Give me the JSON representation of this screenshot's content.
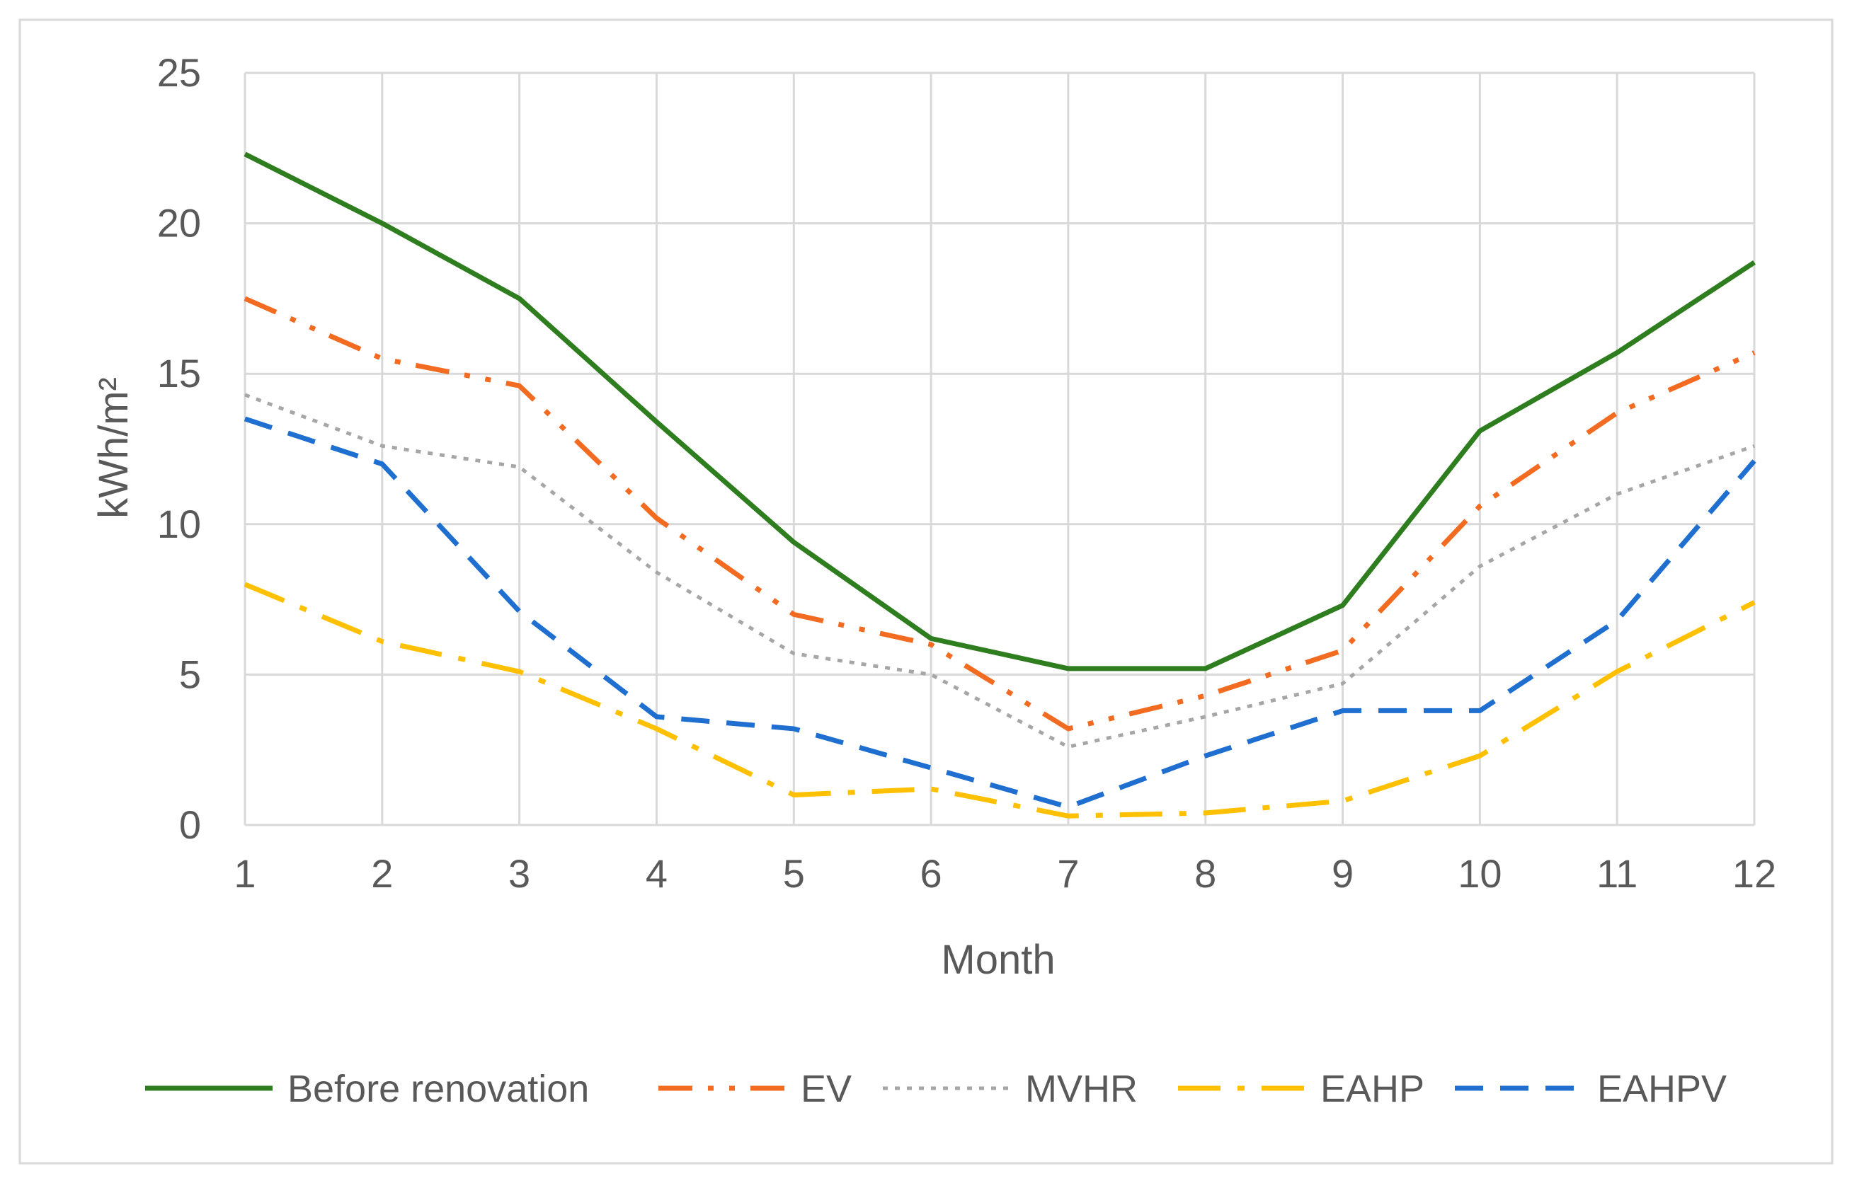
{
  "chart_data": {
    "type": "line",
    "title": "",
    "xlabel": "Month",
    "ylabel": "kWh/m²",
    "x": [
      1,
      2,
      3,
      4,
      5,
      6,
      7,
      8,
      9,
      10,
      11,
      12
    ],
    "xlim": [
      1,
      12
    ],
    "ylim": [
      0,
      25
    ],
    "yticks": [
      0,
      5,
      10,
      15,
      20,
      25
    ],
    "grid": true,
    "legend_position": "bottom",
    "series": [
      {
        "name": "Before renovation",
        "color": "#2E7D1E",
        "style": "solid",
        "values": [
          22.3,
          20.0,
          17.5,
          13.4,
          9.4,
          6.2,
          5.2,
          5.2,
          7.3,
          13.1,
          15.7,
          18.7
        ]
      },
      {
        "name": "EV",
        "color": "#F26B21",
        "style": "dash-dot-dot",
        "values": [
          17.5,
          15.5,
          14.6,
          10.2,
          7.0,
          6.0,
          3.2,
          4.3,
          5.8,
          10.6,
          13.7,
          15.7
        ]
      },
      {
        "name": "MVHR",
        "color": "#A6A6A6",
        "style": "dotted",
        "values": [
          14.3,
          12.6,
          11.9,
          8.4,
          5.7,
          5.0,
          2.6,
          3.6,
          4.7,
          8.6,
          11.0,
          12.6
        ]
      },
      {
        "name": "EAHP",
        "color": "#FFC000",
        "style": "long-dash-dot",
        "values": [
          8.0,
          6.1,
          5.1,
          3.2,
          1.0,
          1.2,
          0.3,
          0.4,
          0.8,
          2.3,
          5.1,
          7.4
        ]
      },
      {
        "name": "EAHPV",
        "color": "#1F6FD0",
        "style": "dashed",
        "values": [
          13.5,
          12.0,
          7.1,
          3.6,
          3.2,
          1.9,
          0.6,
          2.3,
          3.8,
          3.8,
          6.8,
          12.1
        ]
      }
    ]
  }
}
